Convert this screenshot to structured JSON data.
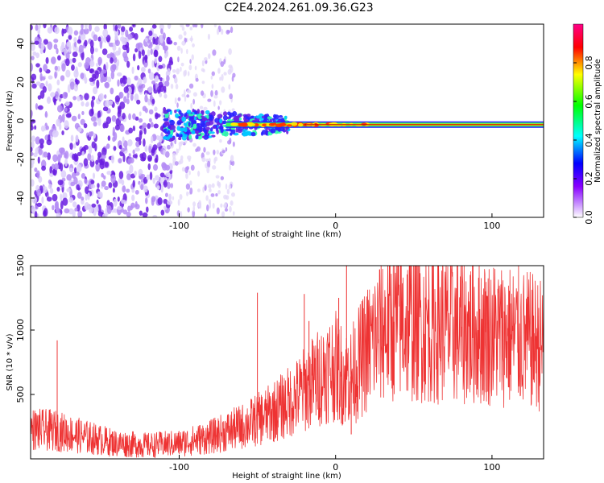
{
  "title": "C2E4.2024.261.09.36.G23",
  "chart_data": [
    {
      "type": "heatmap",
      "xlabel": "Height of straight line (km)",
      "ylabel": "Frequency (Hz)",
      "xlim": [
        -195,
        133
      ],
      "ylim": [
        -50,
        50
      ],
      "xticks": [
        -100,
        0,
        100
      ],
      "yticks": [
        -40,
        -20,
        0,
        20,
        40
      ],
      "colorbar": {
        "label": "Normalized spectral amplitude",
        "range": [
          0,
          1
        ],
        "ticks": [
          0.0,
          0.2,
          0.4,
          0.6,
          0.8
        ],
        "tick_labels": [
          "0.0",
          "0.2",
          "0.4",
          "0.6",
          "0.8"
        ],
        "stops": [
          "#ffffff",
          "#8800ff",
          "#0000ff",
          "#00ffff",
          "#00ff00",
          "#ffff00",
          "#ff0000",
          "#ff0088"
        ]
      },
      "features": {
        "noise_region_x": [
          -195,
          -105
        ],
        "faint_noise_region_x": [
          -105,
          -65
        ],
        "signal_onset_x": -110,
        "signal_end_x": 133,
        "signal_frequency_hz": -2,
        "broadband_cluster_x": [
          -110,
          -30
        ],
        "broadband_cluster_halfwidth_hz": 8
      }
    },
    {
      "type": "line",
      "xlabel": "Height of straight line (km)",
      "ylabel": "SNR (10 * v/v)",
      "xlim": [
        -195,
        133
      ],
      "ylim": [
        0,
        1500
      ],
      "xticks": [
        -100,
        0,
        100
      ],
      "yticks": [
        500,
        1000,
        1500
      ],
      "series": [
        {
          "name": "SNR",
          "color": "#ee3333",
          "trend_x": [
            -195,
            -180,
            -160,
            -140,
            -120,
            -100,
            -80,
            -60,
            -45,
            -35,
            -25,
            -18,
            -10,
            -5,
            0,
            5,
            10,
            20,
            30,
            40,
            60,
            80,
            100,
            115,
            133
          ],
          "trend_y": [
            230,
            220,
            170,
            120,
            105,
            120,
            170,
            250,
            330,
            400,
            480,
            560,
            640,
            700,
            720,
            640,
            640,
            850,
            1020,
            1060,
            1030,
            1000,
            980,
            950,
            880
          ],
          "spikes": [
            [
              -178,
              920
            ],
            [
              -50,
              1290
            ],
            [
              -20,
              1280
            ],
            [
              -17,
              1070
            ],
            [
              2,
              1250
            ],
            [
              7,
              1500
            ],
            [
              8,
              860
            ],
            [
              10,
              190
            ],
            [
              96,
              1300
            ]
          ]
        }
      ]
    }
  ]
}
